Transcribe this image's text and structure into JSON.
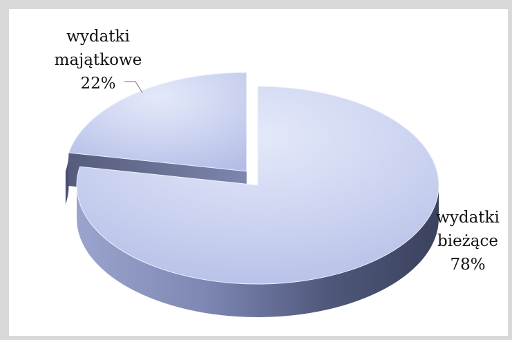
{
  "chart_data": {
    "type": "pie",
    "slices": [
      {
        "line1": "wydatki",
        "line2": "bieżące",
        "percent": "78%",
        "value": 78
      },
      {
        "line1": "wydatki",
        "line2": "majątkowe",
        "percent": "22%",
        "value": 22
      }
    ],
    "legend": "none",
    "style": "3d-exploded",
    "colors": {
      "top": "#cdd5f1",
      "side_light": "#8c96c2",
      "side_dark": "#3e4560"
    }
  }
}
